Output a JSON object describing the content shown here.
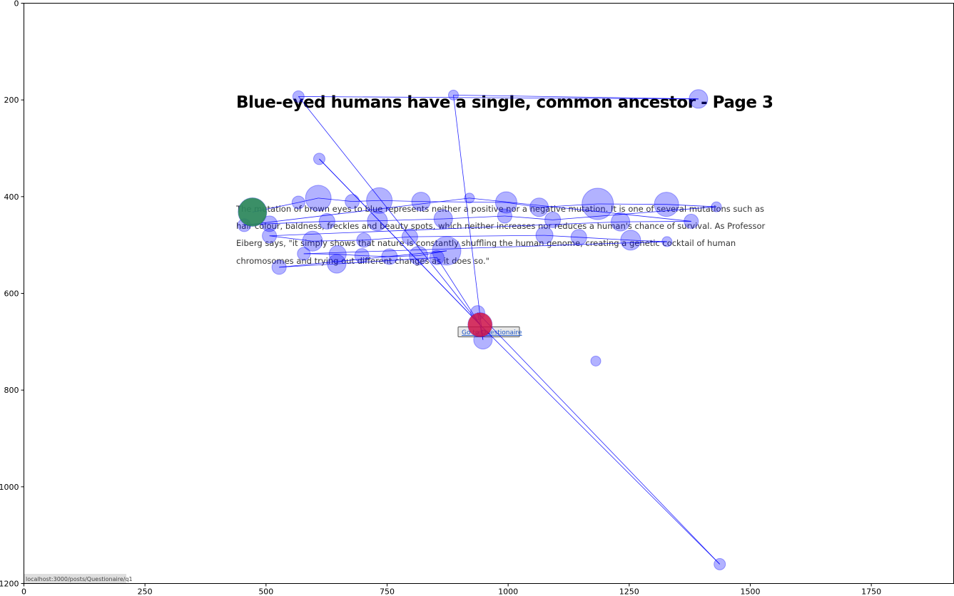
{
  "page": {
    "title": "Blue-eyed humans have a single, common ancestor - Page 3",
    "paragraph_lines": [
      "The mutation of brown eyes to blue represents neither a positive nor a negative mutation. It is one of several mutations such as",
      "hair colour, baldness, freckles and beauty spots, which neither increases nor reduces a human's chance of survival. As Professor",
      "Eiberg says, \"it simply shows that nature is constantly shuffling the human genome, creating a genetic cocktail of human",
      "chromosomes and trying out different changes as it does so.\""
    ],
    "button_label": "Go to Questionaire",
    "status_url": "localhost:3000/posts/Questionaire/q1"
  },
  "chart_data": {
    "type": "scatter",
    "title": "",
    "xlabel": "",
    "ylabel": "",
    "xlim": [
      0,
      1920
    ],
    "ylim": [
      1200,
      0
    ],
    "xticks": [
      0,
      250,
      500,
      750,
      1000,
      1250,
      1500,
      1750
    ],
    "yticks": [
      0,
      200,
      400,
      600,
      800,
      1000,
      1200
    ],
    "grid": false,
    "colors": {
      "fixation": "#0000ff",
      "path": "#0000ff",
      "start": "#2e8b57",
      "end": "#dc143c"
    },
    "start_point": {
      "x": 472,
      "y": 432,
      "r": 20
    },
    "end_point": {
      "x": 942,
      "y": 665,
      "r": 17
    },
    "points": [
      {
        "x": 472,
        "y": 432,
        "r": 20
      },
      {
        "x": 567,
        "y": 412,
        "r": 9
      },
      {
        "x": 608,
        "y": 403,
        "r": 18
      },
      {
        "x": 678,
        "y": 410,
        "r": 10
      },
      {
        "x": 734,
        "y": 408,
        "r": 18
      },
      {
        "x": 820,
        "y": 410,
        "r": 13
      },
      {
        "x": 920,
        "y": 403,
        "r": 7
      },
      {
        "x": 996,
        "y": 412,
        "r": 15
      },
      {
        "x": 1064,
        "y": 422,
        "r": 13
      },
      {
        "x": 1185,
        "y": 415,
        "r": 22
      },
      {
        "x": 1327,
        "y": 416,
        "r": 17
      },
      {
        "x": 1430,
        "y": 421,
        "r": 7
      },
      {
        "x": 1378,
        "y": 451,
        "r": 10
      },
      {
        "x": 1232,
        "y": 452,
        "r": 13
      },
      {
        "x": 1092,
        "y": 448,
        "r": 11
      },
      {
        "x": 993,
        "y": 440,
        "r": 10
      },
      {
        "x": 866,
        "y": 446,
        "r": 13
      },
      {
        "x": 730,
        "y": 450,
        "r": 14
      },
      {
        "x": 626,
        "y": 451,
        "r": 11
      },
      {
        "x": 507,
        "y": 456,
        "r": 11
      },
      {
        "x": 455,
        "y": 459,
        "r": 9
      },
      {
        "x": 507,
        "y": 481,
        "r": 10
      },
      {
        "x": 596,
        "y": 492,
        "r": 14
      },
      {
        "x": 702,
        "y": 490,
        "r": 10
      },
      {
        "x": 797,
        "y": 483,
        "r": 11
      },
      {
        "x": 1075,
        "y": 480,
        "r": 12
      },
      {
        "x": 1146,
        "y": 484,
        "r": 11
      },
      {
        "x": 1253,
        "y": 490,
        "r": 14
      },
      {
        "x": 1328,
        "y": 493,
        "r": 7
      },
      {
        "x": 578,
        "y": 518,
        "r": 9
      },
      {
        "x": 648,
        "y": 519,
        "r": 12
      },
      {
        "x": 698,
        "y": 522,
        "r": 10
      },
      {
        "x": 755,
        "y": 524,
        "r": 11
      },
      {
        "x": 815,
        "y": 522,
        "r": 13
      },
      {
        "x": 873,
        "y": 512,
        "r": 20
      },
      {
        "x": 853,
        "y": 526,
        "r": 10
      },
      {
        "x": 646,
        "y": 539,
        "r": 13
      },
      {
        "x": 527,
        "y": 546,
        "r": 10
      },
      {
        "x": 937,
        "y": 640,
        "r": 10
      },
      {
        "x": 942,
        "y": 665,
        "r": 17
      },
      {
        "x": 948,
        "y": 696,
        "r": 13
      },
      {
        "x": 1181,
        "y": 740,
        "r": 7
      },
      {
        "x": 1437,
        "y": 1160,
        "r": 8
      },
      {
        "x": 567,
        "y": 193,
        "r": 8
      },
      {
        "x": 887,
        "y": 190,
        "r": 7
      },
      {
        "x": 1393,
        "y": 198,
        "r": 13
      },
      {
        "x": 610,
        "y": 322,
        "r": 8
      }
    ],
    "path": [
      {
        "x": 472,
        "y": 432
      },
      {
        "x": 567,
        "y": 412
      },
      {
        "x": 608,
        "y": 403
      },
      {
        "x": 678,
        "y": 410
      },
      {
        "x": 734,
        "y": 408
      },
      {
        "x": 820,
        "y": 410
      },
      {
        "x": 996,
        "y": 412
      },
      {
        "x": 1064,
        "y": 422
      },
      {
        "x": 1185,
        "y": 415
      },
      {
        "x": 1327,
        "y": 416
      },
      {
        "x": 1430,
        "y": 421
      },
      {
        "x": 1092,
        "y": 448
      },
      {
        "x": 993,
        "y": 440
      },
      {
        "x": 866,
        "y": 446
      },
      {
        "x": 730,
        "y": 450
      },
      {
        "x": 626,
        "y": 451
      },
      {
        "x": 507,
        "y": 456
      },
      {
        "x": 455,
        "y": 459
      },
      {
        "x": 920,
        "y": 403
      },
      {
        "x": 1378,
        "y": 451
      },
      {
        "x": 1232,
        "y": 452
      },
      {
        "x": 507,
        "y": 481
      },
      {
        "x": 596,
        "y": 492
      },
      {
        "x": 702,
        "y": 490
      },
      {
        "x": 797,
        "y": 483
      },
      {
        "x": 1075,
        "y": 480
      },
      {
        "x": 1146,
        "y": 484
      },
      {
        "x": 1253,
        "y": 490
      },
      {
        "x": 1328,
        "y": 493
      },
      {
        "x": 578,
        "y": 518
      },
      {
        "x": 648,
        "y": 519
      },
      {
        "x": 698,
        "y": 522
      },
      {
        "x": 755,
        "y": 524
      },
      {
        "x": 815,
        "y": 522
      },
      {
        "x": 873,
        "y": 512
      },
      {
        "x": 527,
        "y": 546
      },
      {
        "x": 646,
        "y": 539
      },
      {
        "x": 853,
        "y": 526
      },
      {
        "x": 942,
        "y": 665
      },
      {
        "x": 610,
        "y": 322
      },
      {
        "x": 942,
        "y": 665
      },
      {
        "x": 567,
        "y": 193
      },
      {
        "x": 1393,
        "y": 198
      },
      {
        "x": 887,
        "y": 190
      },
      {
        "x": 948,
        "y": 696
      },
      {
        "x": 937,
        "y": 640
      },
      {
        "x": 1437,
        "y": 1160
      },
      {
        "x": 942,
        "y": 665
      }
    ]
  }
}
